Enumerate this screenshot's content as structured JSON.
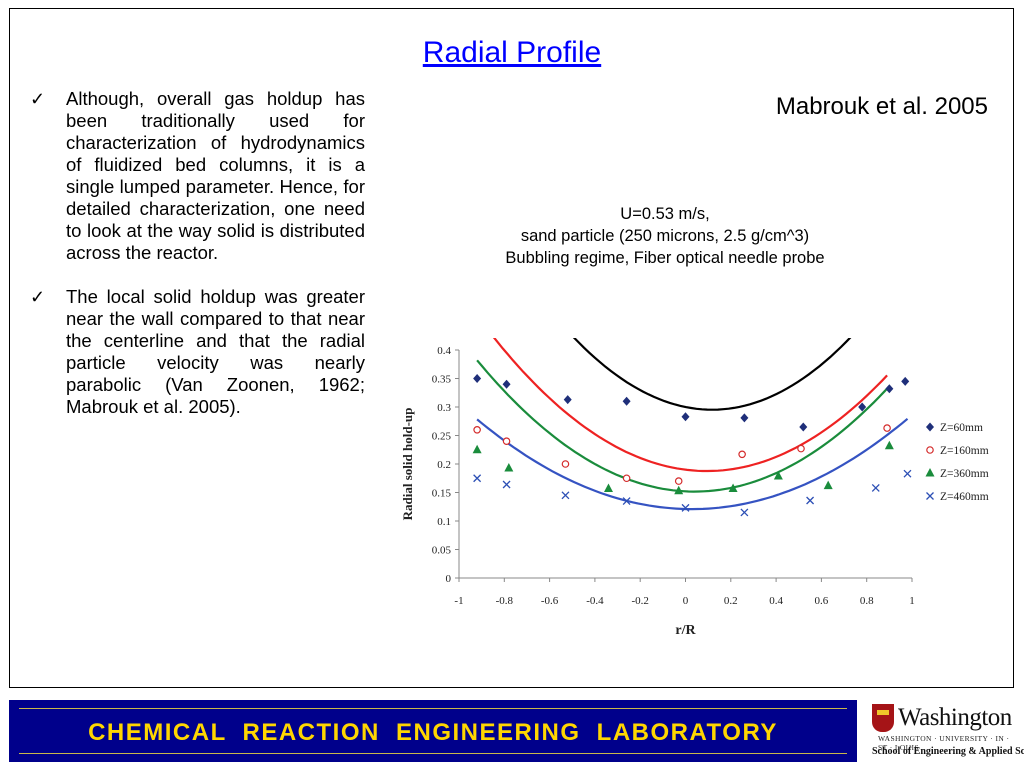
{
  "slide": {
    "title": "Radial Profile",
    "author": "Mabrouk et al. 2005",
    "bullets": [
      "Although, overall gas holdup has been traditionally used for characterization of hydrodynamics of fluidized bed columns, it is a single lumped parameter. Hence, for detailed characterization, one need to look at the way solid is distributed across the reactor.",
      "The local solid holdup was greater near the wall compared to that near the centerline and that the radial particle velocity was nearly parabolic (Van Zoonen, 1962; Mabrouk et al. 2005)."
    ],
    "caption": [
      "U=0.53 m/s,",
      "sand particle (250 microns, 2.5 g/cm^3)",
      "Bubbling regime, Fiber optical needle probe"
    ],
    "check_icon": "checkmark-icon"
  },
  "footer": {
    "lab_name": "CHEMICAL  REACTION  ENGINEERING  LABORATORY",
    "background": "#00008b",
    "text_color": "#ffd600"
  },
  "logo": {
    "name": "Washington",
    "sub": "WASHINGTON · UNIVERSITY · IN · ST · LOUIS",
    "school": "School of Engineering & Applied Science",
    "crest_icon": "university-crest-icon"
  },
  "chart_data": {
    "type": "scatter",
    "xlabel": "r/R",
    "ylabel": "Radial solid hold-up",
    "xlim": [
      -1,
      1
    ],
    "ylim": [
      0,
      0.4
    ],
    "xticks": [
      -1,
      -0.8,
      -0.6,
      -0.4,
      -0.2,
      0,
      0.2,
      0.4,
      0.6,
      0.8,
      1
    ],
    "yticks": [
      0,
      0.05,
      0.1,
      0.15,
      0.2,
      0.25,
      0.3,
      0.35,
      0.4
    ],
    "legend_position": "right",
    "series": [
      {
        "name": "Z=60mm",
        "marker": "diamond",
        "color": "#1f2f7a",
        "curve_color": "#000000",
        "x": [
          -0.92,
          -0.79,
          -0.52,
          -0.26,
          0.0,
          0.26,
          0.52,
          0.78,
          0.9,
          0.97
        ],
        "y": [
          0.35,
          0.34,
          0.313,
          0.31,
          0.283,
          0.281,
          0.265,
          0.3,
          0.332,
          0.345
        ],
        "fit": [
          0.3,
          -0.08,
          0.34
        ]
      },
      {
        "name": "Z=160mm",
        "marker": "circle",
        "color": "#d42b2b",
        "curve_color": "#ee2222",
        "x": [
          -0.92,
          -0.79,
          -0.53,
          -0.26,
          -0.03,
          0.25,
          0.51,
          0.89
        ],
        "y": [
          0.26,
          0.24,
          0.2,
          0.175,
          0.17,
          0.217,
          0.227,
          0.263
        ],
        "fit": [
          0.19,
          -0.05,
          0.265
        ]
      },
      {
        "name": "Z=360mm",
        "marker": "triangle",
        "color": "#1a8c3c",
        "curve_color": "#1a8c3c",
        "x": [
          -0.92,
          -0.78,
          -0.34,
          -0.03,
          0.21,
          0.41,
          0.63,
          0.9
        ],
        "y": [
          0.225,
          0.193,
          0.157,
          0.153,
          0.157,
          0.179,
          0.162,
          0.232
        ],
        "fit": [
          0.152,
          -0.02,
          0.25
        ]
      },
      {
        "name": "Z=460mm",
        "marker": "cross",
        "color": "#2c4fb5",
        "curve_color": "#3553c2",
        "x": [
          -0.92,
          -0.79,
          -0.53,
          -0.26,
          0.0,
          0.26,
          0.55,
          0.84,
          0.98
        ],
        "y": [
          0.175,
          0.164,
          0.145,
          0.135,
          0.123,
          0.115,
          0.136,
          0.158,
          0.183
        ],
        "fit": [
          0.121,
          -0.01,
          0.175
        ]
      }
    ]
  }
}
